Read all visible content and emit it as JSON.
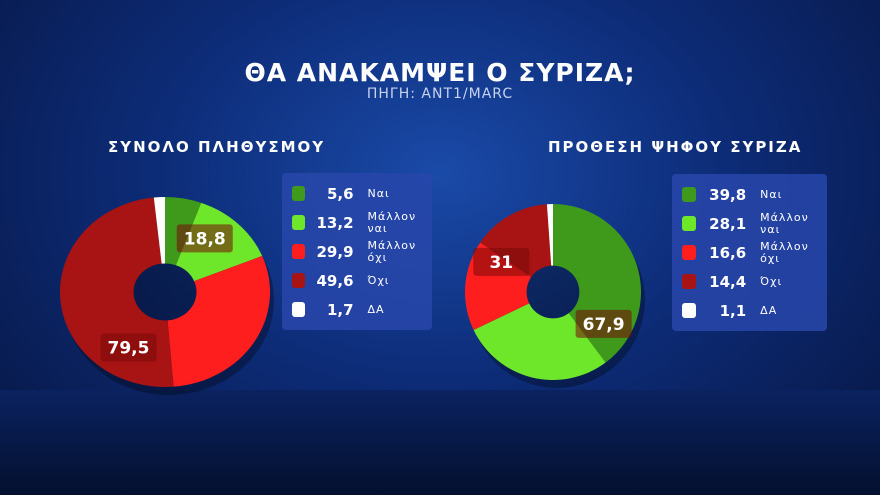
{
  "header": {
    "title": "ΘΑ ΑΝΑΚΑΜΨΕΙ Ο ΣΥΡΙΖΑ;",
    "source": "ΠΗΓΗ: ANT1/MARC"
  },
  "chart_data": [
    {
      "type": "pie",
      "title": "ΣΥΝΟΛΟ ΠΛΗΘΥΣΜΟΥ",
      "categories": [
        "Ναι",
        "Μάλλον ναι",
        "Μάλλον όχι",
        "Όχι",
        "ΔΑ"
      ],
      "values": [
        5.6,
        13.2,
        29.9,
        49.6,
        1.7
      ],
      "value_labels": [
        "5,6",
        "13,2",
        "29,9",
        "49,6",
        "1,7"
      ],
      "colors": [
        "#3f9a1c",
        "#6ee62a",
        "#ff1e1e",
        "#a81414",
        "#ffffff"
      ],
      "annotations": [
        {
          "text": "18,8",
          "group": [
            0,
            1
          ]
        },
        {
          "text": "79,5",
          "group": [
            2,
            3
          ]
        }
      ]
    },
    {
      "type": "pie",
      "title": "ΠΡΟΘΕΣΗ ΨΗΦΟΥ ΣΥΡΙΖΑ",
      "categories": [
        "Ναι",
        "Μάλλον ναι",
        "Μάλλον όχι",
        "Όχι",
        "ΔΑ"
      ],
      "values": [
        39.8,
        28.1,
        16.6,
        14.4,
        1.1
      ],
      "value_labels": [
        "39,8",
        "28,1",
        "16,6",
        "14,4",
        "1,1"
      ],
      "colors": [
        "#3f9a1c",
        "#6ee62a",
        "#ff1e1e",
        "#a81414",
        "#ffffff"
      ],
      "annotations": [
        {
          "text": "67,9",
          "group": [
            0,
            1
          ]
        },
        {
          "text": "31",
          "group": [
            2,
            3
          ]
        }
      ]
    }
  ]
}
